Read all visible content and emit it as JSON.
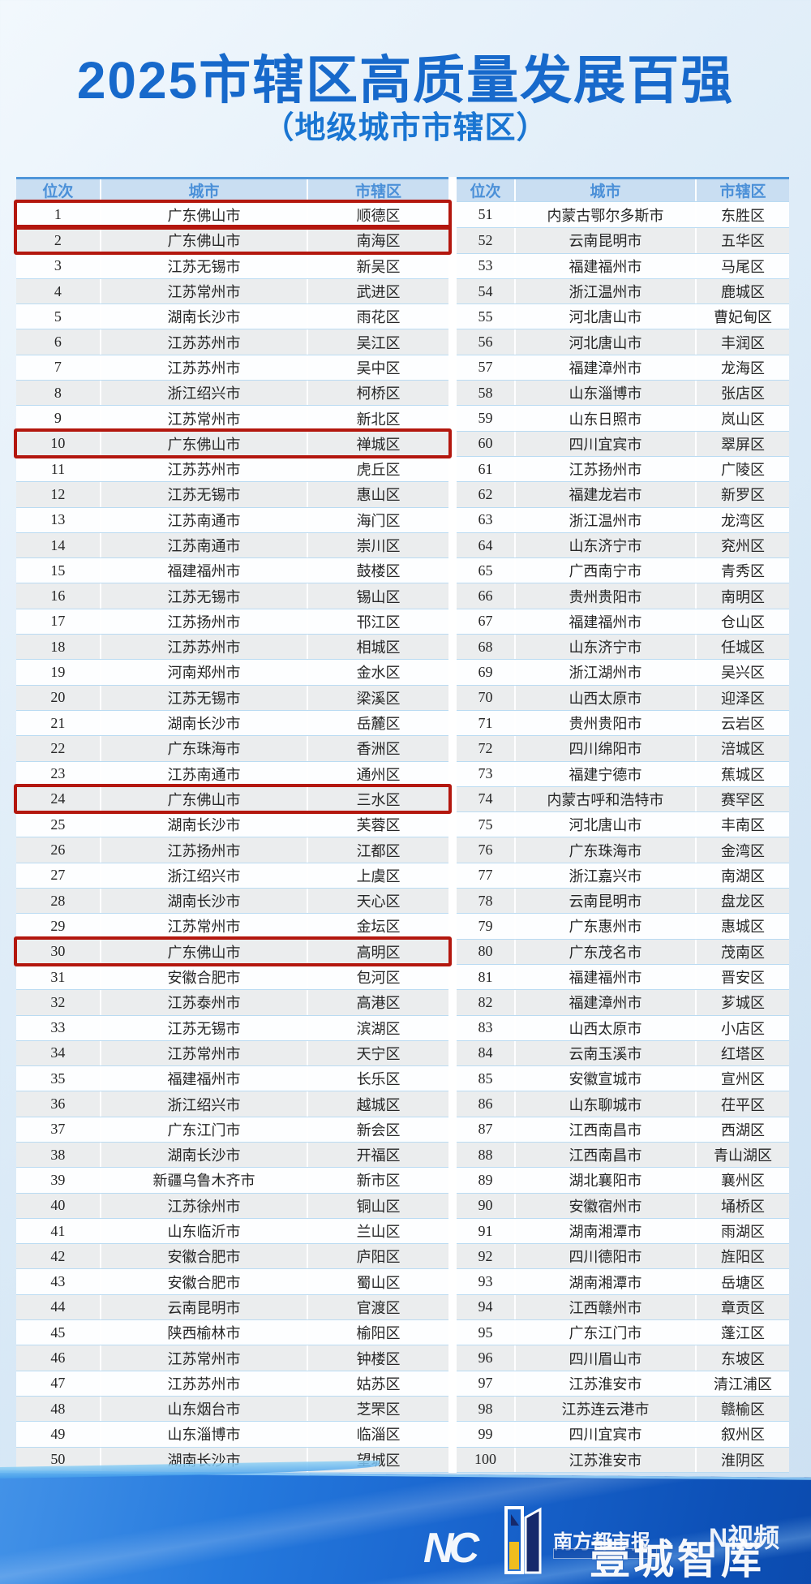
{
  "page": {
    "title": "2025市辖区高质量发展百强",
    "subtitle": "（地级城市市辖区）",
    "title_color": "#1769cb"
  },
  "table": {
    "columns": [
      "位次",
      "城市",
      "市辖区"
    ],
    "highlight_ranks": [
      1,
      2,
      10,
      24,
      30
    ],
    "highlight_color": "#b3170e",
    "header_text_color": "#4b90d8",
    "zebra_color": "#ebedee"
  },
  "chart_data": {
    "type": "table",
    "title": "2025市辖区高质量发展百强",
    "subtitle": "（地级城市市辖区）",
    "columns": [
      "位次",
      "城市",
      "市辖区"
    ],
    "highlighted_ranks": [
      1,
      2,
      10,
      24,
      30
    ],
    "rows": [
      [
        1,
        "广东佛山市",
        "顺德区"
      ],
      [
        2,
        "广东佛山市",
        "南海区"
      ],
      [
        3,
        "江苏无锡市",
        "新吴区"
      ],
      [
        4,
        "江苏常州市",
        "武进区"
      ],
      [
        5,
        "湖南长沙市",
        "雨花区"
      ],
      [
        6,
        "江苏苏州市",
        "吴江区"
      ],
      [
        7,
        "江苏苏州市",
        "吴中区"
      ],
      [
        8,
        "浙江绍兴市",
        "柯桥区"
      ],
      [
        9,
        "江苏常州市",
        "新北区"
      ],
      [
        10,
        "广东佛山市",
        "禅城区"
      ],
      [
        11,
        "江苏苏州市",
        "虎丘区"
      ],
      [
        12,
        "江苏无锡市",
        "惠山区"
      ],
      [
        13,
        "江苏南通市",
        "海门区"
      ],
      [
        14,
        "江苏南通市",
        "崇川区"
      ],
      [
        15,
        "福建福州市",
        "鼓楼区"
      ],
      [
        16,
        "江苏无锡市",
        "锡山区"
      ],
      [
        17,
        "江苏扬州市",
        "邗江区"
      ],
      [
        18,
        "江苏苏州市",
        "相城区"
      ],
      [
        19,
        "河南郑州市",
        "金水区"
      ],
      [
        20,
        "江苏无锡市",
        "梁溪区"
      ],
      [
        21,
        "湖南长沙市",
        "岳麓区"
      ],
      [
        22,
        "广东珠海市",
        "香洲区"
      ],
      [
        23,
        "江苏南通市",
        "通州区"
      ],
      [
        24,
        "广东佛山市",
        "三水区"
      ],
      [
        25,
        "湖南长沙市",
        "芙蓉区"
      ],
      [
        26,
        "江苏扬州市",
        "江都区"
      ],
      [
        27,
        "浙江绍兴市",
        "上虞区"
      ],
      [
        28,
        "湖南长沙市",
        "天心区"
      ],
      [
        29,
        "江苏常州市",
        "金坛区"
      ],
      [
        30,
        "广东佛山市",
        "高明区"
      ],
      [
        31,
        "安徽合肥市",
        "包河区"
      ],
      [
        32,
        "江苏泰州市",
        "高港区"
      ],
      [
        33,
        "江苏无锡市",
        "滨湖区"
      ],
      [
        34,
        "江苏常州市",
        "天宁区"
      ],
      [
        35,
        "福建福州市",
        "长乐区"
      ],
      [
        36,
        "浙江绍兴市",
        "越城区"
      ],
      [
        37,
        "广东江门市",
        "新会区"
      ],
      [
        38,
        "湖南长沙市",
        "开福区"
      ],
      [
        39,
        "新疆乌鲁木齐市",
        "新市区"
      ],
      [
        40,
        "江苏徐州市",
        "铜山区"
      ],
      [
        41,
        "山东临沂市",
        "兰山区"
      ],
      [
        42,
        "安徽合肥市",
        "庐阳区"
      ],
      [
        43,
        "安徽合肥市",
        "蜀山区"
      ],
      [
        44,
        "云南昆明市",
        "官渡区"
      ],
      [
        45,
        "陕西榆林市",
        "榆阳区"
      ],
      [
        46,
        "江苏常州市",
        "钟楼区"
      ],
      [
        47,
        "江苏苏州市",
        "姑苏区"
      ],
      [
        48,
        "山东烟台市",
        "芝罘区"
      ],
      [
        49,
        "山东淄博市",
        "临淄区"
      ],
      [
        50,
        "湖南长沙市",
        "望城区"
      ],
      [
        51,
        "内蒙古鄂尔多斯市",
        "东胜区"
      ],
      [
        52,
        "云南昆明市",
        "五华区"
      ],
      [
        53,
        "福建福州市",
        "马尾区"
      ],
      [
        54,
        "浙江温州市",
        "鹿城区"
      ],
      [
        55,
        "河北唐山市",
        "曹妃甸区"
      ],
      [
        56,
        "河北唐山市",
        "丰润区"
      ],
      [
        57,
        "福建漳州市",
        "龙海区"
      ],
      [
        58,
        "山东淄博市",
        "张店区"
      ],
      [
        59,
        "山东日照市",
        "岚山区"
      ],
      [
        60,
        "四川宜宾市",
        "翠屏区"
      ],
      [
        61,
        "江苏扬州市",
        "广陵区"
      ],
      [
        62,
        "福建龙岩市",
        "新罗区"
      ],
      [
        63,
        "浙江温州市",
        "龙湾区"
      ],
      [
        64,
        "山东济宁市",
        "兖州区"
      ],
      [
        65,
        "广西南宁市",
        "青秀区"
      ],
      [
        66,
        "贵州贵阳市",
        "南明区"
      ],
      [
        67,
        "福建福州市",
        "仓山区"
      ],
      [
        68,
        "山东济宁市",
        "任城区"
      ],
      [
        69,
        "浙江湖州市",
        "吴兴区"
      ],
      [
        70,
        "山西太原市",
        "迎泽区"
      ],
      [
        71,
        "贵州贵阳市",
        "云岩区"
      ],
      [
        72,
        "四川绵阳市",
        "涪城区"
      ],
      [
        73,
        "福建宁德市",
        "蕉城区"
      ],
      [
        74,
        "内蒙古呼和浩特市",
        "赛罕区"
      ],
      [
        75,
        "河北唐山市",
        "丰南区"
      ],
      [
        76,
        "广东珠海市",
        "金湾区"
      ],
      [
        77,
        "浙江嘉兴市",
        "南湖区"
      ],
      [
        78,
        "云南昆明市",
        "盘龙区"
      ],
      [
        79,
        "广东惠州市",
        "惠城区"
      ],
      [
        80,
        "广东茂名市",
        "茂南区"
      ],
      [
        81,
        "福建福州市",
        "晋安区"
      ],
      [
        82,
        "福建漳州市",
        "芗城区"
      ],
      [
        83,
        "山西太原市",
        "小店区"
      ],
      [
        84,
        "云南玉溪市",
        "红塔区"
      ],
      [
        85,
        "安徽宣城市",
        "宣州区"
      ],
      [
        86,
        "山东聊城市",
        "茌平区"
      ],
      [
        87,
        "江西南昌市",
        "西湖区"
      ],
      [
        88,
        "江西南昌市",
        "青山湖区"
      ],
      [
        89,
        "湖北襄阳市",
        "襄州区"
      ],
      [
        90,
        "安徽宿州市",
        "埇桥区"
      ],
      [
        91,
        "湖南湘潭市",
        "雨湖区"
      ],
      [
        92,
        "四川德阳市",
        "旌阳区"
      ],
      [
        93,
        "湖南湘潭市",
        "岳塘区"
      ],
      [
        94,
        "江西赣州市",
        "章贡区"
      ],
      [
        95,
        "广东江门市",
        "蓬江区"
      ],
      [
        96,
        "四川眉山市",
        "东坡区"
      ],
      [
        97,
        "江苏淮安市",
        "清江浦区"
      ],
      [
        98,
        "江苏连云港市",
        "赣榆区"
      ],
      [
        99,
        "四川宜宾市",
        "叙州区"
      ],
      [
        100,
        "江苏淮安市",
        "淮阴区"
      ]
    ]
  },
  "footer": {
    "logo_letters": "NC",
    "press_name": "南方都市报",
    "brand_name": "壹城智库",
    "video_name": "N视频"
  }
}
